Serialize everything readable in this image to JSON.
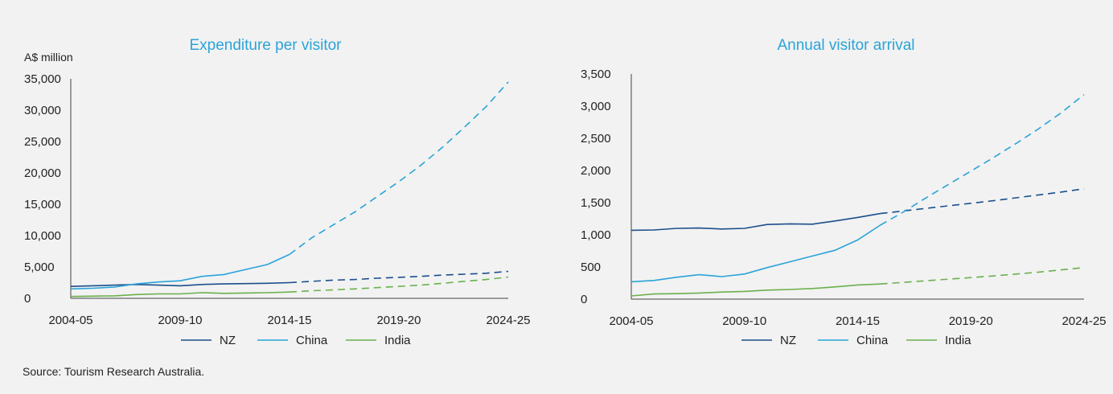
{
  "source_note": "Source: Tourism Research Australia.",
  "colors": {
    "NZ": "#1b4f8c",
    "China": "#2aa3d9",
    "India": "#6ab04c",
    "title": "#2aa3d9"
  },
  "chart_data": [
    {
      "type": "line",
      "title": "Expenditure per visitor",
      "unit_label": "A$ million",
      "xlabel": "",
      "ylabel": "",
      "x": [
        "2004-05",
        "2005-06",
        "2006-07",
        "2007-08",
        "2008-09",
        "2009-10",
        "2010-11",
        "2011-12",
        "2012-13",
        "2013-14",
        "2014-15",
        "2015-16",
        "2016-17",
        "2017-18",
        "2018-19",
        "2019-20",
        "2020-21",
        "2021-22",
        "2022-23",
        "2023-24",
        "2024-25"
      ],
      "x_tick_labels": [
        "2004-05",
        "2009-10",
        "2014-15",
        "2019-20",
        "2024-25"
      ],
      "yticks": [
        "0",
        "5,000",
        "10,000",
        "15,000",
        "20,000",
        "25,000",
        "30,000",
        "35,000"
      ],
      "ylim": [
        0,
        35000
      ],
      "grid": false,
      "legend_position": "bottom",
      "series": [
        {
          "name": "NZ",
          "actual_values": [
            1900,
            2000,
            2100,
            2200,
            2100,
            2000,
            2200,
            2300,
            2350,
            2400,
            2500
          ],
          "forecast_values": [
            2500,
            2700,
            2900,
            3000,
            3200,
            3350,
            3500,
            3700,
            3850,
            4000,
            4300
          ]
        },
        {
          "name": "China",
          "actual_values": [
            1500,
            1600,
            1800,
            2300,
            2600,
            2800,
            3500,
            3800,
            4600,
            5400,
            7000
          ],
          "forecast_values": [
            7000,
            9600,
            11700,
            13800,
            16200,
            18600,
            21200,
            24100,
            27300,
            30600,
            34500
          ]
        },
        {
          "name": "India",
          "actual_values": [
            300,
            350,
            400,
            600,
            700,
            700,
            900,
            800,
            850,
            900,
            1000
          ],
          "forecast_values": [
            1000,
            1200,
            1350,
            1500,
            1700,
            1900,
            2100,
            2400,
            2700,
            3000,
            3400
          ]
        }
      ]
    },
    {
      "type": "line",
      "title": "Annual visitor arrival",
      "xlabel": "",
      "ylabel": "",
      "x": [
        "2004-05",
        "2005-06",
        "2006-07",
        "2007-08",
        "2008-09",
        "2009-10",
        "2010-11",
        "2011-12",
        "2012-13",
        "2013-14",
        "2014-15",
        "2015-16",
        "2016-17",
        "2017-18",
        "2018-19",
        "2019-20",
        "2020-21",
        "2021-22",
        "2022-23",
        "2023-24",
        "2024-25"
      ],
      "x_tick_labels": [
        "2004-05",
        "2009-10",
        "2014-15",
        "2019-20",
        "2024-25"
      ],
      "yticks": [
        "0",
        "500",
        "1,000",
        "1,500",
        "2,000",
        "2,500",
        "3,000",
        "3,500"
      ],
      "ylim": [
        0,
        3500
      ],
      "grid": false,
      "legend_position": "bottom",
      "series": [
        {
          "name": "NZ",
          "actual_values": [
            1070,
            1075,
            1100,
            1105,
            1090,
            1100,
            1160,
            1170,
            1165,
            1215,
            1270,
            1330
          ],
          "forecast_values": [
            1330,
            1370,
            1410,
            1450,
            1490,
            1530,
            1575,
            1620,
            1665,
            1715
          ]
        },
        {
          "name": "China",
          "actual_values": [
            270,
            290,
            340,
            380,
            350,
            390,
            490,
            580,
            670,
            760,
            920,
            1150
          ],
          "forecast_values": [
            1150,
            1350,
            1570,
            1780,
            1990,
            2200,
            2420,
            2650,
            2900,
            3180
          ]
        },
        {
          "name": "India",
          "actual_values": [
            50,
            80,
            85,
            95,
            110,
            120,
            140,
            150,
            165,
            190,
            220,
            235
          ],
          "forecast_values": [
            235,
            260,
            285,
            310,
            335,
            360,
            390,
            420,
            455,
            490
          ]
        }
      ]
    }
  ]
}
